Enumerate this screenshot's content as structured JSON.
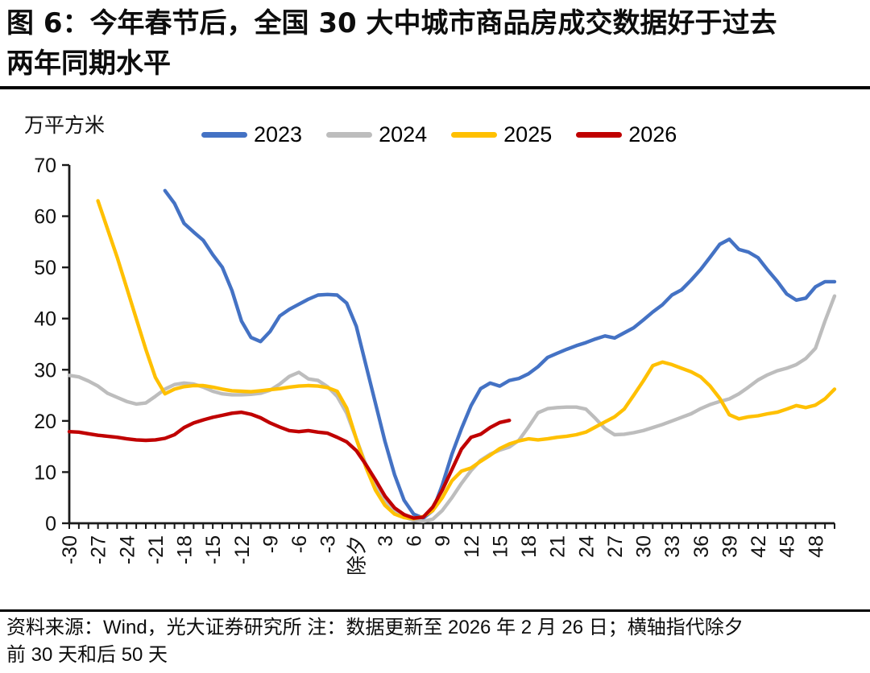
{
  "title": {
    "line1": "图 6：今年春节后，全国 30 大中城市商品房成交数据好于过去",
    "line2": "两年同期水平"
  },
  "unit_label": "万平方米",
  "footer": {
    "line1": "资料来源：Wind，光大证券研究所  注：数据更新至 2026 年 2 月 26 日；横轴指代除夕",
    "line2": "前 30 天和后 50 天"
  },
  "colors": {
    "axis": "#1a1a1a",
    "blue_2023": "#4472C4",
    "gray_2024": "#BDBDBD",
    "yellow_2025": "#FFC000",
    "red_2026": "#C00000"
  },
  "chart_data": {
    "type": "line",
    "title": "今年春节后，全国30大中城市商品房成交数据好于过去两年同期水平",
    "ylabel": "万平方米",
    "xlabel": "除夕前30天至后50天（除夕=0）",
    "ylim": [
      0,
      70
    ],
    "y_ticks": [
      0,
      10,
      20,
      30,
      40,
      50,
      60,
      70
    ],
    "x_range": [
      -30,
      50
    ],
    "grid": false,
    "legend_position": "top",
    "x_ticks": [
      {
        "day": -30,
        "label": "-30"
      },
      {
        "day": -27,
        "label": "-27"
      },
      {
        "day": -24,
        "label": "-24"
      },
      {
        "day": -21,
        "label": "-21"
      },
      {
        "day": -18,
        "label": "-18"
      },
      {
        "day": -15,
        "label": "-15"
      },
      {
        "day": -12,
        "label": "-12"
      },
      {
        "day": -9,
        "label": "-9"
      },
      {
        "day": -6,
        "label": "-6"
      },
      {
        "day": -3,
        "label": "-3"
      },
      {
        "day": 0,
        "label": "除夕"
      },
      {
        "day": 3,
        "label": "3"
      },
      {
        "day": 6,
        "label": "6"
      },
      {
        "day": 9,
        "label": "9"
      },
      {
        "day": 12,
        "label": "12"
      },
      {
        "day": 15,
        "label": "15"
      },
      {
        "day": 18,
        "label": "18"
      },
      {
        "day": 21,
        "label": "21"
      },
      {
        "day": 24,
        "label": "24"
      },
      {
        "day": 27,
        "label": "27"
      },
      {
        "day": 30,
        "label": "30"
      },
      {
        "day": 33,
        "label": "33"
      },
      {
        "day": 36,
        "label": "36"
      },
      {
        "day": 39,
        "label": "39"
      },
      {
        "day": 42,
        "label": "42"
      },
      {
        "day": 45,
        "label": "45"
      },
      {
        "day": 48,
        "label": "48"
      }
    ],
    "series": [
      {
        "name": "2023",
        "color": "#4472C4",
        "start_day": -20,
        "values": [
          65,
          62.5,
          58.6,
          56.9,
          55.3,
          52.5,
          50,
          45.5,
          39.5,
          36.3,
          35.5,
          37.5,
          40.5,
          41.8,
          42.8,
          43.8,
          44.6,
          44.7,
          44.6,
          43,
          38.5,
          31,
          23.5,
          16,
          9.5,
          4.5,
          1.8,
          1,
          2.5,
          7.5,
          13.5,
          18.5,
          23,
          26.3,
          27.4,
          26.8,
          27.9,
          28.3,
          29.2,
          30.6,
          32.4,
          33.2,
          34,
          34.7,
          35.3,
          36,
          36.6,
          36.2,
          37.2,
          38.2,
          39.7,
          41.3,
          42.7,
          44.6,
          45.6,
          47.5,
          49.6,
          52,
          54.5,
          55.5,
          53.5,
          53,
          51.9,
          49.5,
          47.3,
          44.8,
          43.6,
          44,
          46.2,
          47.2,
          47.2
        ]
      },
      {
        "name": "2024",
        "color": "#BDBDBD",
        "start_day": -30,
        "values": [
          28.9,
          28.6,
          27.8,
          26.8,
          25.4,
          24.6,
          23.8,
          23.3,
          23.5,
          24.8,
          26.2,
          27.1,
          27.4,
          27.2,
          26.6,
          25.8,
          25.3,
          25.1,
          25.1,
          25.2,
          25.4,
          26,
          27.2,
          28.7,
          29.5,
          28.2,
          27.9,
          26.7,
          24.8,
          21.5,
          16.5,
          11.5,
          7.5,
          4.5,
          2.5,
          1.2,
          0.6,
          0.4,
          0.8,
          2.5,
          5,
          7.8,
          10.3,
          12.3,
          13.5,
          14.3,
          14.9,
          16.2,
          18.8,
          21.6,
          22.4,
          22.6,
          22.7,
          22.7,
          22.3,
          20.5,
          18.5,
          17.3,
          17.4,
          17.7,
          18.1,
          18.7,
          19.3,
          20,
          20.7,
          21.4,
          22.4,
          23.2,
          23.8,
          24.3,
          25.3,
          26.6,
          28,
          29,
          29.8,
          30.3,
          31,
          32.2,
          34.2,
          39.5,
          44.4
        ]
      },
      {
        "name": "2025",
        "color": "#FFC000",
        "start_day": -27,
        "values": [
          63,
          57.5,
          52,
          46,
          40,
          34,
          28.5,
          25.3,
          26.2,
          26.7,
          26.9,
          26.9,
          26.6,
          26.2,
          25.9,
          25.8,
          25.7,
          25.9,
          26.1,
          26.3,
          26.6,
          26.8,
          26.9,
          26.8,
          26.5,
          25.8,
          22.5,
          16.5,
          11,
          6.5,
          3.5,
          1.8,
          1.1,
          0.9,
          1.3,
          2.5,
          5,
          8.3,
          10.2,
          10.8,
          12.1,
          13.3,
          14.6,
          15.5,
          16.1,
          16.5,
          16.3,
          16.5,
          16.8,
          17,
          17.3,
          17.8,
          18.8,
          19.8,
          20.8,
          22.3,
          25,
          27.8,
          30.8,
          31.5,
          31,
          30.3,
          29.6,
          28.6,
          26.8,
          24.4,
          21.2,
          20.4,
          20.8,
          21,
          21.4,
          21.7,
          22.3,
          23,
          22.6,
          23.1,
          24.3,
          26.2
        ]
      },
      {
        "name": "2026",
        "color": "#C00000",
        "start_day": -30,
        "values": [
          17.9,
          17.8,
          17.5,
          17.2,
          17,
          16.8,
          16.5,
          16.3,
          16.2,
          16.3,
          16.6,
          17.3,
          18.7,
          19.6,
          20.2,
          20.7,
          21.1,
          21.5,
          21.7,
          21.3,
          20.6,
          19.6,
          18.8,
          18.1,
          17.9,
          18.1,
          17.8,
          17.6,
          16.8,
          15.9,
          14.2,
          11.5,
          8.5,
          5.3,
          3,
          1.7,
          1,
          1.2,
          3.2,
          6.5,
          10.5,
          14.5,
          16.8,
          17.4,
          18.7,
          19.7,
          20.1
        ]
      }
    ]
  }
}
